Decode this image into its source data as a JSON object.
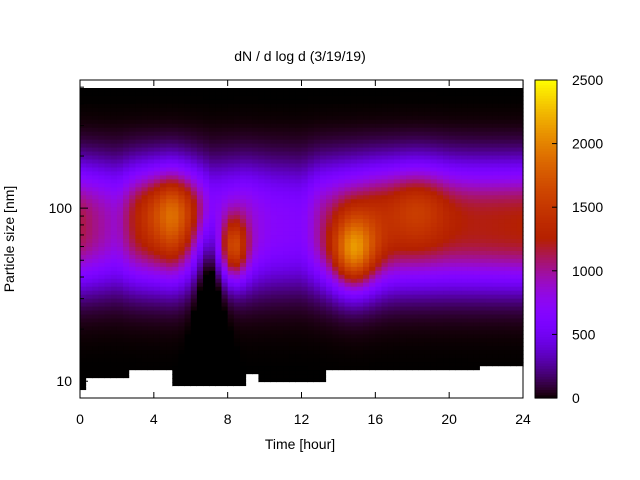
{
  "chart_data": {
    "type": "heatmap",
    "title": "dN / d log d (3/19/19)",
    "xlabel": "Time [hour]",
    "ylabel": "Particle size [nm]",
    "x_range": [
      0,
      24
    ],
    "x_ticks": [
      0,
      4,
      8,
      12,
      16,
      20,
      24
    ],
    "x_tick_labels": [
      "0",
      "4",
      "8",
      "12",
      "16",
      "20",
      "24"
    ],
    "y_scale": "log",
    "y_range": [
      8,
      550
    ],
    "y_ticks": [
      10,
      100
    ],
    "y_tick_labels": [
      "10",
      "100"
    ],
    "colorbar": {
      "min": 0,
      "max": 2500,
      "ticks": [
        0,
        500,
        1000,
        1500,
        2000,
        2500
      ],
      "tick_labels": [
        "0",
        "500",
        "1000",
        "1500",
        "2000",
        "2500"
      ],
      "palette": "gnuplot pm3d (black-purple-red-orange-yellow)"
    },
    "grid": false,
    "legend": "none",
    "modes": [
      {
        "time_h": 0.0,
        "size_nm": 115,
        "peak": 1380
      },
      {
        "time_h": 5.5,
        "size_nm": 105,
        "peak": 1550
      },
      {
        "time_h": 8.3,
        "size_nm": 60,
        "peak": 1650
      },
      {
        "time_h": 14.8,
        "size_nm": 60,
        "peak": 1900
      },
      {
        "time_h": 18.5,
        "size_nm": 105,
        "peak": 1480
      },
      {
        "time_h": 23.0,
        "size_nm": 110,
        "peak": 1380
      }
    ],
    "lower_size_limit_nm": [
      {
        "time_h": 0.0,
        "size_nm": 8.7
      },
      {
        "time_h": 0.4,
        "size_nm": 10.5
      },
      {
        "time_h": 2.7,
        "size_nm": 11.8
      },
      {
        "time_h": 5.0,
        "size_nm": 9.2
      },
      {
        "time_h": 9.0,
        "size_nm": 10.8
      },
      {
        "time_h": 9.8,
        "size_nm": 10.0
      },
      {
        "time_h": 13.5,
        "size_nm": 11.3
      },
      {
        "time_h": 17.0,
        "size_nm": 11.8
      },
      {
        "time_h": 19.5,
        "size_nm": 11.3
      },
      {
        "time_h": 21.7,
        "size_nm": 12.0
      },
      {
        "time_h": 24.0,
        "size_nm": 12.0
      }
    ]
  }
}
